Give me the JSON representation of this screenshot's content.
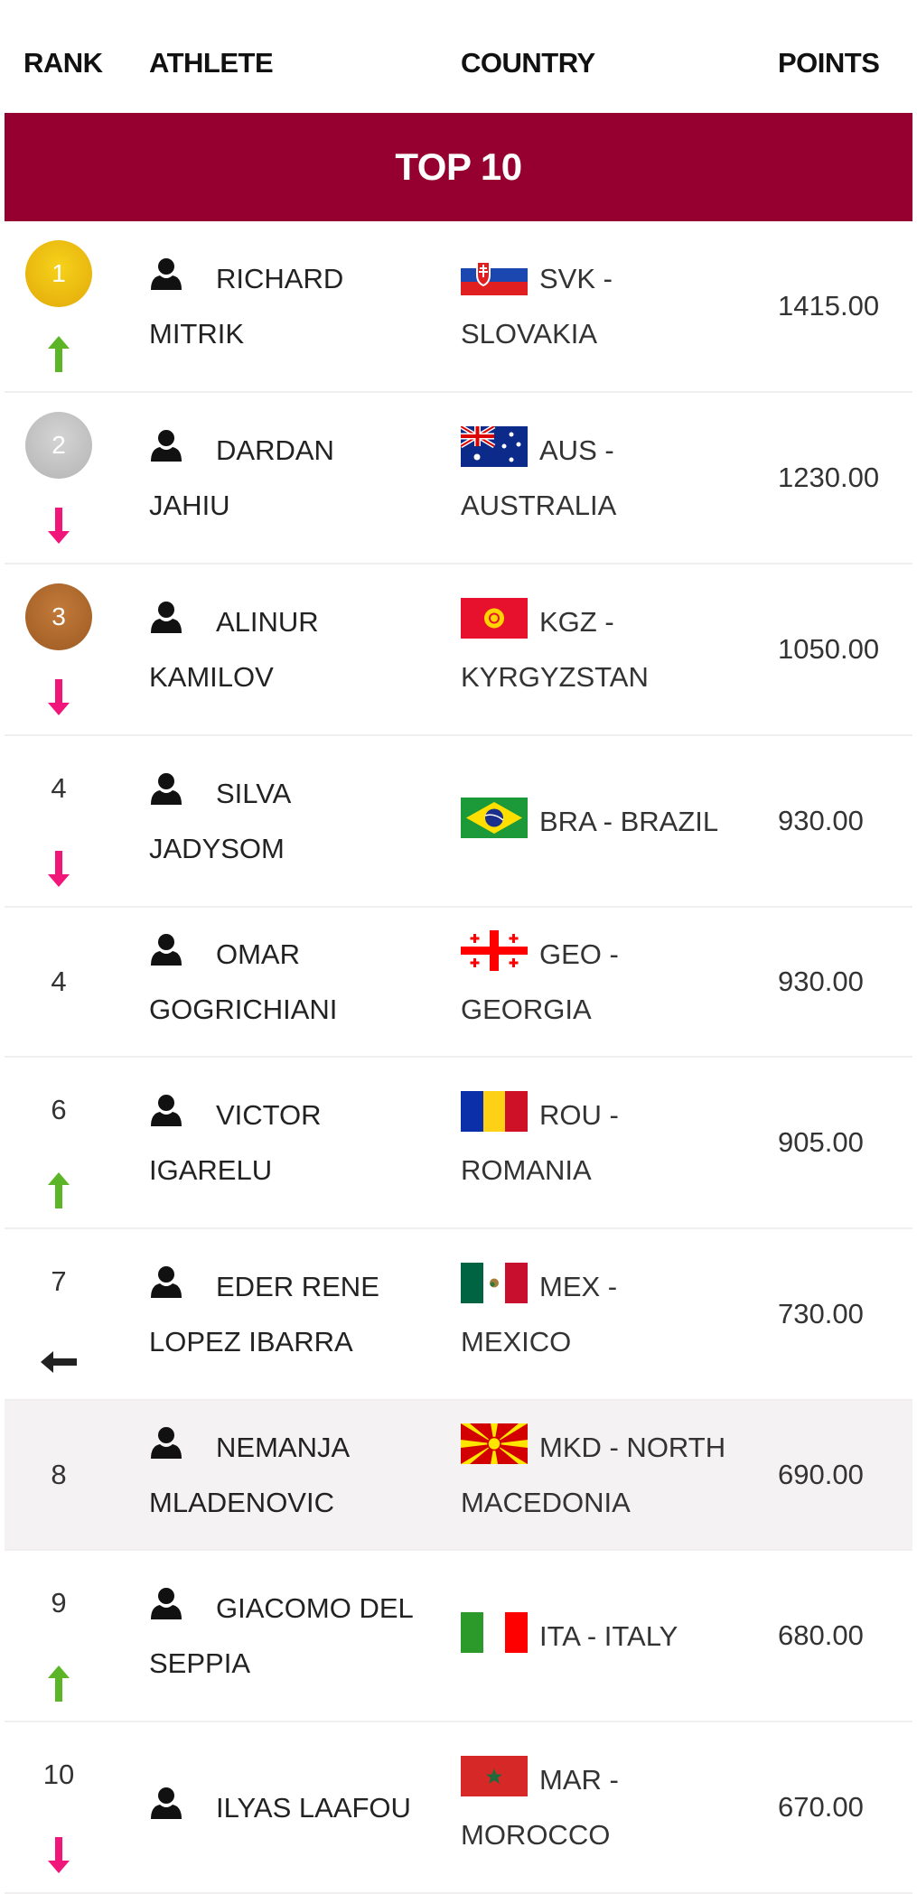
{
  "header": {
    "rank": "RANK",
    "athlete": "ATHLETE",
    "country": "COUNTRY",
    "points": "POINTS"
  },
  "banner": {
    "title": "TOP 10"
  },
  "colors": {
    "banner": "#960030",
    "up": "#5cb526",
    "down": "#f0167a",
    "same": "#222222",
    "gold": "#eec014",
    "silver": "#c4c4c4",
    "bronze": "#ad6a2e"
  },
  "rows": [
    {
      "rank": "1",
      "medal": "gold",
      "trend": "up",
      "name_lines": [
        "RICHARD",
        "MITRIK"
      ],
      "flag": "SVK",
      "country_lines": [
        "SVK -",
        "SLOVAKIA"
      ],
      "points": "1415.00"
    },
    {
      "rank": "2",
      "medal": "silver",
      "trend": "down",
      "name_lines": [
        "DARDAN",
        "JAHIU"
      ],
      "flag": "AUS",
      "country_lines": [
        "AUS -",
        "AUSTRALIA"
      ],
      "points": "1230.00"
    },
    {
      "rank": "3",
      "medal": "bronze",
      "trend": "down",
      "name_lines": [
        "ALINUR",
        "KAMILOV"
      ],
      "flag": "KGZ",
      "country_lines": [
        "KGZ -",
        "KYRGYZSTAN"
      ],
      "points": "1050.00"
    },
    {
      "rank": "4",
      "medal": "",
      "trend": "down",
      "name_lines": [
        "SILVA",
        "JADYSOM"
      ],
      "flag": "BRA",
      "country_lines": [
        "BRA - BRAZIL"
      ],
      "points": "930.00"
    },
    {
      "rank": "4",
      "medal": "",
      "trend": "",
      "name_lines": [
        "OMAR",
        "GOGRICHIANI"
      ],
      "flag": "GEO",
      "country_lines": [
        "GEO -",
        "GEORGIA"
      ],
      "points": "930.00"
    },
    {
      "rank": "6",
      "medal": "",
      "trend": "up",
      "name_lines": [
        "VICTOR",
        "IGARELU"
      ],
      "flag": "ROU",
      "country_lines": [
        "ROU -",
        "ROMANIA"
      ],
      "points": "905.00"
    },
    {
      "rank": "7",
      "medal": "",
      "trend": "same",
      "name_lines": [
        "EDER RENE",
        "LOPEZ IBARRA"
      ],
      "flag": "MEX",
      "country_lines": [
        "MEX -",
        "MEXICO"
      ],
      "points": "730.00"
    },
    {
      "rank": "8",
      "medal": "",
      "trend": "",
      "highlighted": true,
      "name_lines": [
        "NEMANJA",
        "MLADENOVIC"
      ],
      "flag": "MKD",
      "country_lines": [
        "MKD - NORTH",
        "MACEDONIA"
      ],
      "points": "690.00"
    },
    {
      "rank": "9",
      "medal": "",
      "trend": "up",
      "name_lines": [
        "GIACOMO DEL",
        "SEPPIA"
      ],
      "flag": "ITA",
      "country_lines": [
        "ITA - ITALY"
      ],
      "points": "680.00"
    },
    {
      "rank": "10",
      "medal": "",
      "trend": "down",
      "name_lines": [
        "ILYAS LAAFOU"
      ],
      "flag": "MAR",
      "country_lines": [
        "MAR -",
        "MOROCCO"
      ],
      "points": "670.00"
    }
  ]
}
